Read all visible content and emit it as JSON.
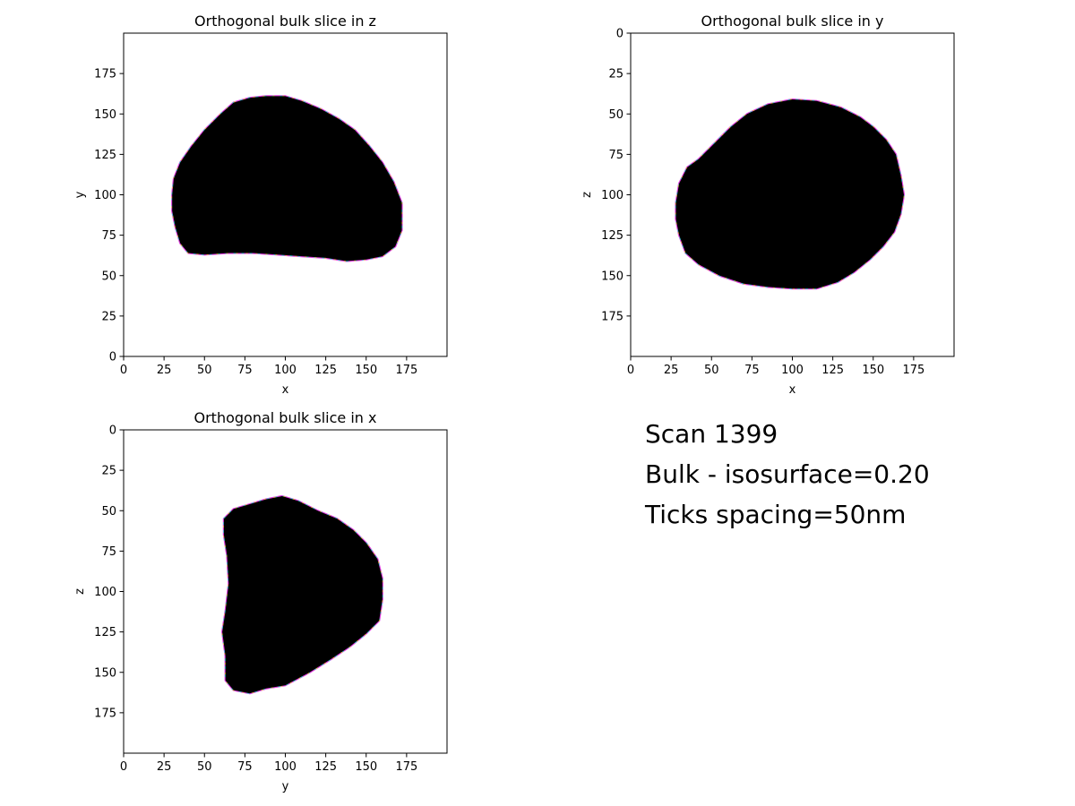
{
  "figure": {
    "info_lines": [
      "Scan 1399",
      "Bulk - isosurface=0.20",
      "Ticks spacing=50nm"
    ]
  },
  "chart_data": [
    {
      "type": "heatmap",
      "title": "Orthogonal bulk slice in z",
      "xlabel": "x",
      "ylabel": "y",
      "xlim": [
        0,
        200
      ],
      "ylim": [
        0,
        200
      ],
      "y_inverted": false,
      "xticks": [
        0,
        25,
        50,
        75,
        100,
        125,
        150,
        175
      ],
      "yticks": [
        0,
        25,
        50,
        75,
        100,
        125,
        150,
        175
      ],
      "grid": false,
      "fill_color": "#000000",
      "boundary": [
        [
          30,
          100
        ],
        [
          31,
          110
        ],
        [
          35,
          120
        ],
        [
          42,
          130
        ],
        [
          50,
          140
        ],
        [
          60,
          150
        ],
        [
          68,
          157
        ],
        [
          78,
          160
        ],
        [
          88,
          161
        ],
        [
          100,
          161
        ],
        [
          110,
          158
        ],
        [
          122,
          153
        ],
        [
          133,
          147
        ],
        [
          143,
          140
        ],
        [
          152,
          130
        ],
        [
          160,
          120
        ],
        [
          167,
          108
        ],
        [
          172,
          95
        ],
        [
          172,
          78
        ],
        [
          168,
          68
        ],
        [
          160,
          62
        ],
        [
          150,
          60
        ],
        [
          138,
          59
        ],
        [
          125,
          61
        ],
        [
          110,
          62
        ],
        [
          95,
          63
        ],
        [
          80,
          64
        ],
        [
          65,
          64
        ],
        [
          50,
          63
        ],
        [
          40,
          64
        ],
        [
          35,
          70
        ],
        [
          32,
          80
        ],
        [
          30,
          90
        ]
      ]
    },
    {
      "type": "heatmap",
      "title": "Orthogonal bulk slice in y",
      "xlabel": "x",
      "ylabel": "z",
      "xlim": [
        0,
        200
      ],
      "ylim": [
        0,
        200
      ],
      "y_inverted": true,
      "xticks": [
        0,
        25,
        50,
        75,
        100,
        125,
        150,
        175
      ],
      "yticks": [
        0,
        25,
        50,
        75,
        100,
        125,
        150,
        175
      ],
      "grid": false,
      "fill_color": "#000000",
      "boundary": [
        [
          28,
          105
        ],
        [
          30,
          93
        ],
        [
          35,
          83
        ],
        [
          42,
          78
        ],
        [
          52,
          68
        ],
        [
          62,
          58
        ],
        [
          72,
          50
        ],
        [
          85,
          44
        ],
        [
          100,
          41
        ],
        [
          115,
          42
        ],
        [
          130,
          46
        ],
        [
          142,
          52
        ],
        [
          150,
          58
        ],
        [
          158,
          66
        ],
        [
          164,
          75
        ],
        [
          167,
          88
        ],
        [
          169,
          100
        ],
        [
          167,
          112
        ],
        [
          163,
          123
        ],
        [
          156,
          132
        ],
        [
          148,
          140
        ],
        [
          138,
          148
        ],
        [
          128,
          154
        ],
        [
          115,
          158
        ],
        [
          100,
          158
        ],
        [
          85,
          157
        ],
        [
          70,
          155
        ],
        [
          55,
          150
        ],
        [
          42,
          143
        ],
        [
          34,
          136
        ],
        [
          30,
          125
        ],
        [
          28,
          115
        ]
      ]
    },
    {
      "type": "heatmap",
      "title": "Orthogonal bulk slice in x",
      "xlabel": "y",
      "ylabel": "z",
      "xlim": [
        0,
        200
      ],
      "ylim": [
        0,
        200
      ],
      "y_inverted": true,
      "xticks": [
        0,
        25,
        50,
        75,
        100,
        125,
        150,
        175
      ],
      "yticks": [
        0,
        25,
        50,
        75,
        100,
        125,
        150,
        175
      ],
      "grid": false,
      "fill_color": "#000000",
      "boundary": [
        [
          62,
          55
        ],
        [
          68,
          49
        ],
        [
          78,
          46
        ],
        [
          88,
          43
        ],
        [
          98,
          41
        ],
        [
          108,
          44
        ],
        [
          120,
          50
        ],
        [
          132,
          55
        ],
        [
          142,
          62
        ],
        [
          150,
          70
        ],
        [
          157,
          80
        ],
        [
          160,
          92
        ],
        [
          160,
          105
        ],
        [
          158,
          118
        ],
        [
          150,
          126
        ],
        [
          140,
          134
        ],
        [
          128,
          142
        ],
        [
          115,
          150
        ],
        [
          100,
          158
        ],
        [
          88,
          160
        ],
        [
          78,
          163
        ],
        [
          68,
          161
        ],
        [
          63,
          155
        ],
        [
          63,
          140
        ],
        [
          61,
          125
        ],
        [
          63,
          112
        ],
        [
          65,
          95
        ],
        [
          64,
          78
        ],
        [
          62,
          65
        ]
      ]
    }
  ]
}
